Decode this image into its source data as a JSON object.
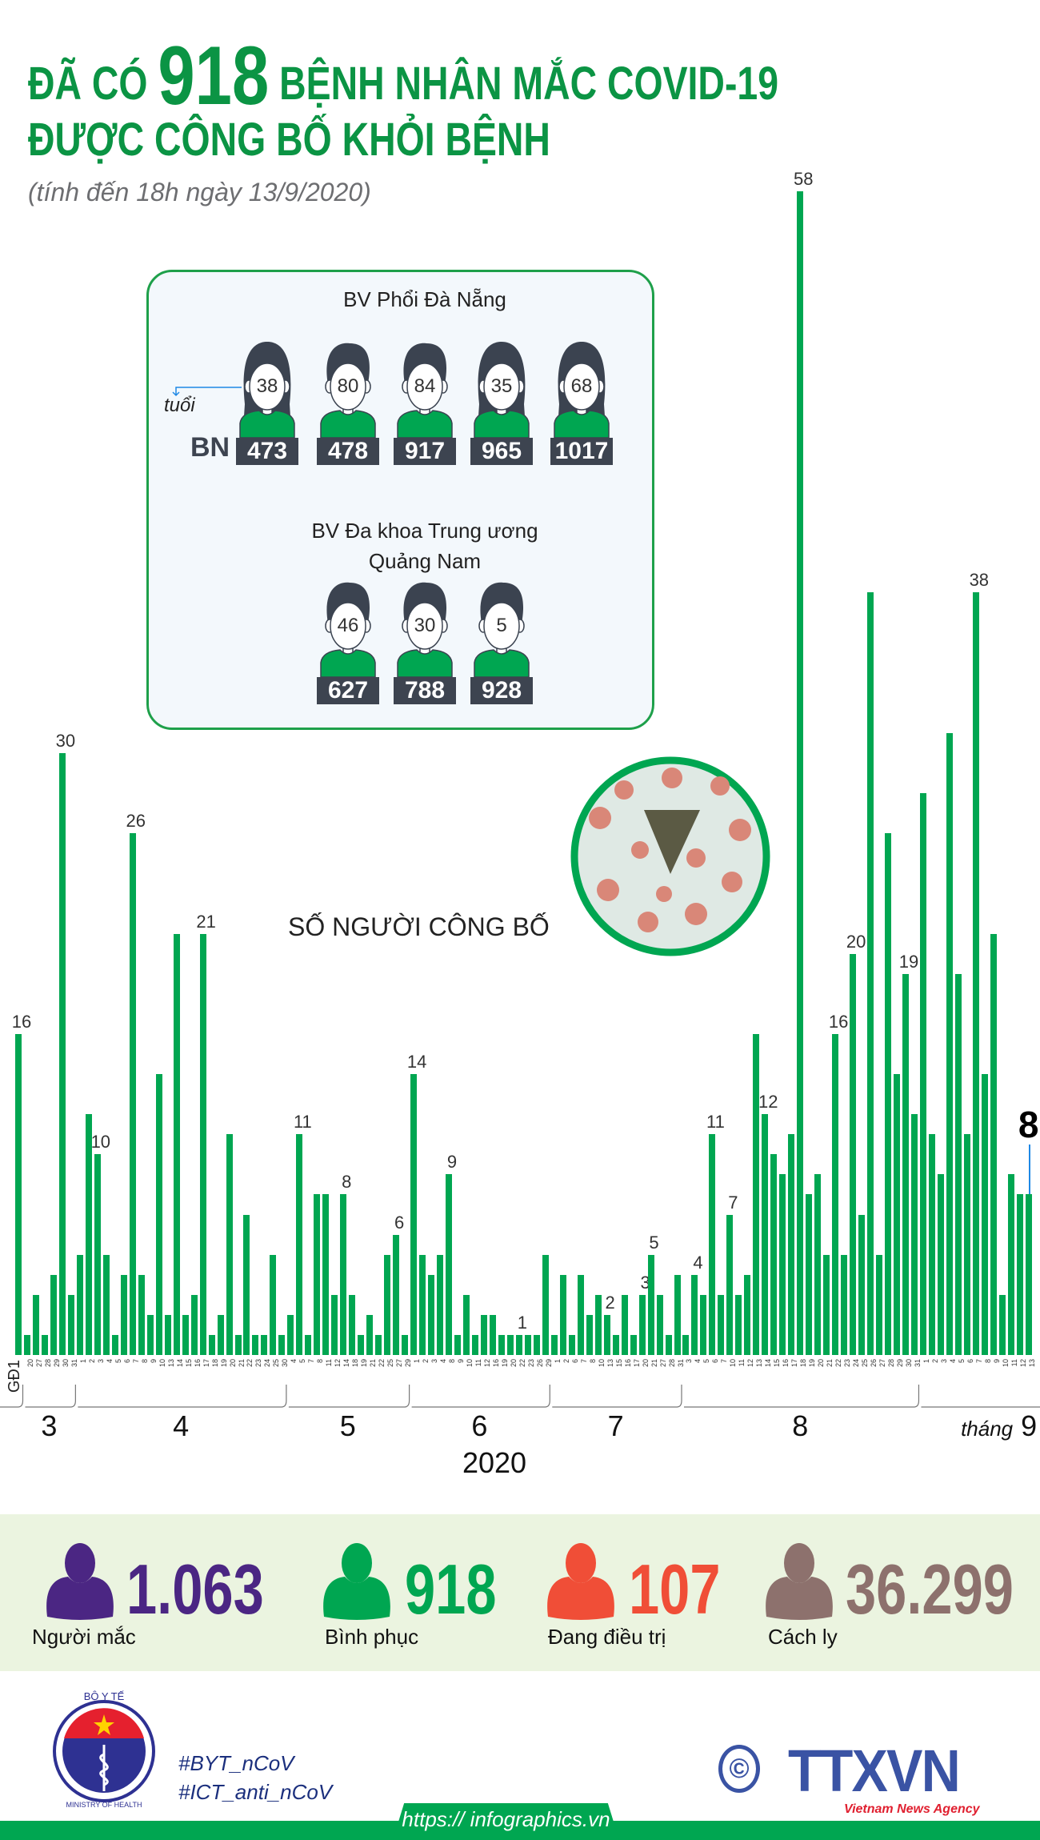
{
  "header": {
    "title_prefix": "ĐÃ CÓ",
    "title_number": "918",
    "title_suffix": "BỆNH NHÂN MẮC COVID-19",
    "title_line2": "ĐƯỢC CÔNG BỐ KHỎI BỆNH",
    "subtitle": "(tính đến 18h ngày 13/9/2020)"
  },
  "hospitals": [
    {
      "name": "BV Phổi Đà Nẵng",
      "patients": [
        {
          "age": "38",
          "id": "473",
          "icon": "female-patient-icon"
        },
        {
          "age": "80",
          "id": "478",
          "icon": "male-patient-icon"
        },
        {
          "age": "84",
          "id": "917",
          "icon": "male-patient-icon"
        },
        {
          "age": "35",
          "id": "965",
          "icon": "female-patient-icon"
        },
        {
          "age": "68",
          "id": "1017",
          "icon": "female-patient-icon"
        }
      ]
    },
    {
      "name_line1": "BV Đa khoa Trung ương",
      "name_line2": "Quảng Nam",
      "patients": [
        {
          "age": "46",
          "id": "627",
          "icon": "male-patient-icon"
        },
        {
          "age": "30",
          "id": "788",
          "icon": "male-patient-icon"
        },
        {
          "age": "5",
          "id": "928",
          "icon": "male-patient-icon"
        }
      ]
    }
  ],
  "legend": {
    "age_label": "tuổi",
    "patient_label": "BN"
  },
  "chart_data": {
    "type": "bar",
    "title": "SỐ NGƯỜI CÔNG BỐ",
    "year_label": "2020",
    "month_prefix_last": "tháng",
    "bar_color": "#00a651",
    "ylim": [
      0,
      58
    ],
    "gd1": {
      "label": "GĐ1",
      "value": 16,
      "labeled": true
    },
    "groups": [
      {
        "month": "3",
        "days": [
          "20",
          "27",
          "28",
          "29",
          "30",
          "31"
        ],
        "values": [
          1,
          3,
          1,
          4,
          30,
          3
        ],
        "labeled_days": [
          "30"
        ]
      },
      {
        "month": "4",
        "days": [
          "1",
          "2",
          "3",
          "4",
          "5",
          "6",
          "7",
          "8",
          "9",
          "10",
          "13",
          "14",
          "15",
          "16",
          "17",
          "18",
          "19",
          "20",
          "21",
          "22",
          "23",
          "24",
          "25",
          "30"
        ],
        "values": [
          5,
          12,
          10,
          5,
          1,
          4,
          26,
          4,
          2,
          14,
          2,
          21,
          2,
          3,
          21,
          1,
          2,
          11,
          1,
          7,
          1,
          1,
          5,
          1
        ],
        "labeled_days": [
          "3",
          "7",
          "17"
        ]
      },
      {
        "month": "5",
        "days": [
          "4",
          "5",
          "7",
          "8",
          "11",
          "12",
          "14",
          "18",
          "19",
          "21",
          "22",
          "25",
          "27",
          "29"
        ],
        "values": [
          2,
          11,
          1,
          8,
          8,
          3,
          8,
          3,
          1,
          2,
          1,
          5,
          6,
          1
        ],
        "labeled_days": [
          "5",
          "14",
          "27"
        ]
      },
      {
        "month": "6",
        "days": [
          "1",
          "2",
          "3",
          "4",
          "8",
          "9",
          "10",
          "11",
          "12",
          "16",
          "19",
          "20",
          "22",
          "23",
          "26",
          "29"
        ],
        "values": [
          14,
          5,
          4,
          5,
          9,
          1,
          3,
          1,
          2,
          2,
          1,
          1,
          1,
          1,
          1,
          5
        ],
        "labeled_days": [
          "1",
          "8",
          "22"
        ]
      },
      {
        "month": "7",
        "days": [
          "1",
          "2",
          "6",
          "7",
          "8",
          "10",
          "13",
          "15",
          "16",
          "17",
          "20",
          "21",
          "27",
          "28",
          "31"
        ],
        "values": [
          1,
          4,
          1,
          4,
          2,
          3,
          2,
          1,
          3,
          1,
          3,
          5,
          3,
          1,
          4
        ],
        "labeled_days": [
          "13",
          "20",
          "21"
        ]
      },
      {
        "month": "8",
        "days": [
          "3",
          "4",
          "5",
          "6",
          "7",
          "10",
          "11",
          "12",
          "13",
          "14",
          "15",
          "16",
          "17",
          "18",
          "19",
          "20",
          "21",
          "22",
          "23",
          "24",
          "25",
          "26",
          "27",
          "28",
          "29",
          "30",
          "31"
        ],
        "values": [
          1,
          4,
          3,
          11,
          3,
          7,
          3,
          4,
          16,
          12,
          10,
          9,
          11,
          58,
          8,
          9,
          5,
          16,
          5,
          20,
          7,
          38,
          5,
          26,
          14,
          19,
          12
        ],
        "labeled_days": [
          "4",
          "6",
          "10",
          "14",
          "18",
          "22",
          "24",
          "30"
        ]
      },
      {
        "month": "9",
        "days": [
          "1",
          "2",
          "3",
          "4",
          "5",
          "6",
          "7",
          "8",
          "9",
          "10",
          "11",
          "12",
          "13"
        ],
        "values": [
          28,
          11,
          9,
          31,
          19,
          11,
          38,
          14,
          21,
          3,
          9,
          8,
          8
        ],
        "labeled_days": [
          "7",
          "13"
        ],
        "highlight_day": "13",
        "highlight_color": "#1e88e5"
      }
    ]
  },
  "stats": [
    {
      "value": "1.063",
      "label": "Người mắc",
      "color": "#4b2683",
      "icon": "person-icon"
    },
    {
      "value": "918",
      "label": "Bình phục",
      "color": "#00a651",
      "icon": "person-icon"
    },
    {
      "value": "107",
      "label": "Đang điều trị",
      "color": "#f04e37",
      "icon": "person-icon"
    },
    {
      "value": "36.299",
      "label": "Cách ly",
      "color": "#8d716d",
      "icon": "person-icon"
    }
  ],
  "footer": {
    "ministry_logo_top": "BỘ Y TẾ",
    "ministry_logo_bottom": "MINISTRY OF HEALTH",
    "hashtag1": "#BYT_nCoV",
    "hashtag2": "#ICT_anti_nCoV",
    "url": "https:// infographics.vn",
    "copyright": "©",
    "agency_logo": "TTXVN",
    "agency_name": "Vietnam News Agency"
  }
}
